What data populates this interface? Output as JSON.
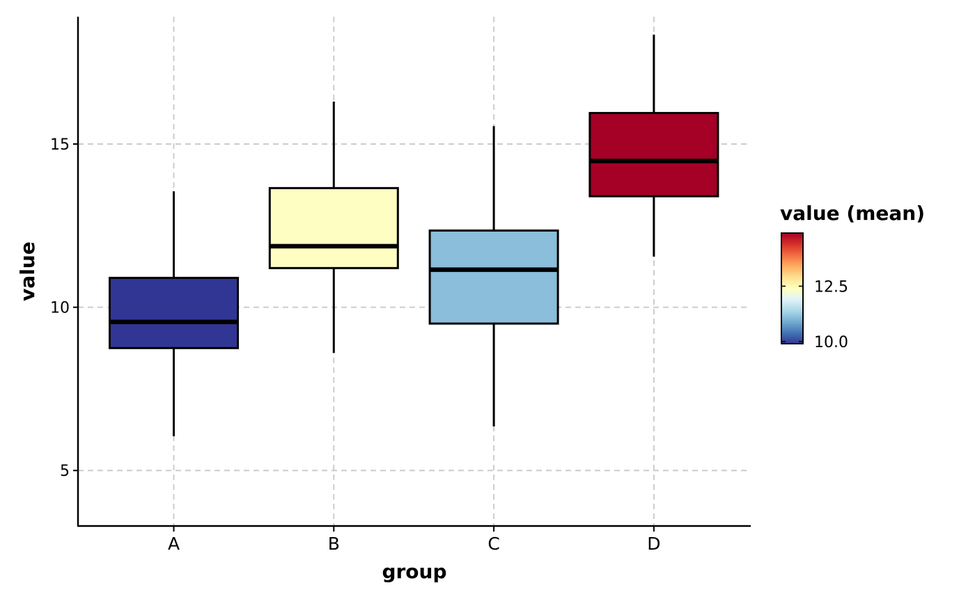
{
  "chart_data": {
    "type": "box",
    "xlabel": "group",
    "ylabel": "value",
    "categories": [
      "A",
      "B",
      "C",
      "D"
    ],
    "ylim": [
      3.3,
      18.9
    ],
    "yticks": [
      5,
      10,
      15
    ],
    "grid": "dashed major gridlines on both axes",
    "boxes": [
      {
        "group": "A",
        "whisker_low": 6.05,
        "q1": 8.75,
        "median": 9.55,
        "q3": 10.9,
        "whisker_high": 13.55,
        "color": "#313695"
      },
      {
        "group": "B",
        "whisker_low": 8.6,
        "q1": 11.2,
        "median": 11.87,
        "q3": 13.65,
        "whisker_high": 16.3,
        "color": "#FEFEC3"
      },
      {
        "group": "C",
        "whisker_low": 6.35,
        "q1": 9.5,
        "median": 11.15,
        "q3": 12.35,
        "whisker_high": 15.55,
        "color": "#8ABEDA"
      },
      {
        "group": "D",
        "whisker_low": 11.55,
        "q1": 13.4,
        "median": 14.48,
        "q3": 15.95,
        "whisker_high": 18.35,
        "color": "#A50026"
      }
    ],
    "legend": {
      "title": "value (mean)",
      "position": "right",
      "type": "colorbar",
      "range": [
        9.9,
        14.9
      ],
      "ticks": [
        "10.0",
        "12.5"
      ],
      "colors": [
        "#313695",
        "#4575B4",
        "#74ADD1",
        "#ABD9E9",
        "#E0F3F8",
        "#FFFFBF",
        "#FEE090",
        "#FDAE61",
        "#F46D43",
        "#D73027",
        "#A50026"
      ]
    }
  }
}
